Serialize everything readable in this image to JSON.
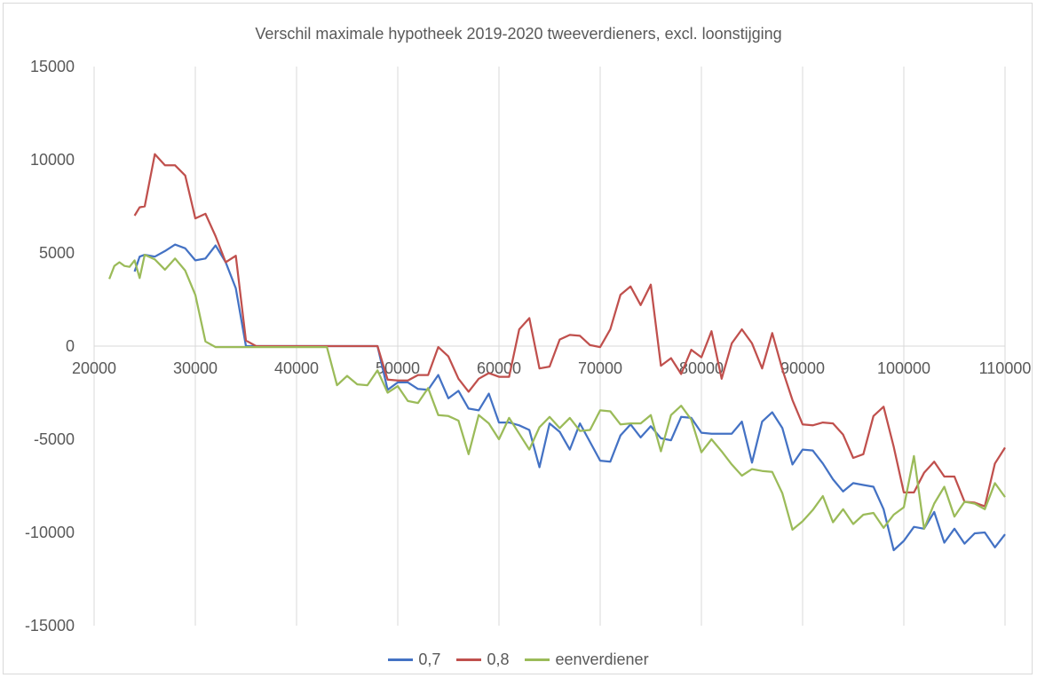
{
  "chart_data": {
    "type": "line",
    "title": "Verschil maximale hypotheek 2019-2020 tweeverdieners, excl. loonstijging",
    "xlabel": "",
    "ylabel": "",
    "xlim": [
      20000,
      110000
    ],
    "ylim": [
      -15000,
      15000
    ],
    "xticks": [
      "20000",
      "30000",
      "40000",
      "50000",
      "60000",
      "70000",
      "80000",
      "90000",
      "100000",
      "110000"
    ],
    "yticks": [
      "15000",
      "10000",
      "5000",
      "0",
      "-5000",
      "-10000",
      "-15000"
    ],
    "grid": "vertical",
    "legend_position": "bottom",
    "series": [
      {
        "name": "0,7",
        "color": "#4472c4",
        "points": [
          [
            24000,
            4000
          ],
          [
            24500,
            4800
          ],
          [
            25000,
            4900
          ],
          [
            26000,
            4800
          ],
          [
            27000,
            5100
          ],
          [
            28000,
            5450
          ],
          [
            29000,
            5250
          ],
          [
            30000,
            4600
          ],
          [
            31000,
            4700
          ],
          [
            32000,
            5400
          ],
          [
            33000,
            4500
          ],
          [
            34000,
            3100
          ],
          [
            35000,
            0
          ],
          [
            36000,
            0
          ],
          [
            37000,
            0
          ],
          [
            38000,
            0
          ],
          [
            39000,
            0
          ],
          [
            40000,
            0
          ],
          [
            41000,
            0
          ],
          [
            42000,
            0
          ],
          [
            43000,
            0
          ],
          [
            44000,
            0
          ],
          [
            45000,
            0
          ],
          [
            46000,
            0
          ],
          [
            47000,
            0
          ],
          [
            48000,
            0
          ],
          [
            49000,
            -2350
          ],
          [
            50000,
            -1950
          ],
          [
            51000,
            -1950
          ],
          [
            52000,
            -2300
          ],
          [
            53000,
            -2350
          ],
          [
            54000,
            -1550
          ],
          [
            55000,
            -2800
          ],
          [
            56000,
            -2400
          ],
          [
            57000,
            -3350
          ],
          [
            58000,
            -3450
          ],
          [
            59000,
            -2550
          ],
          [
            60000,
            -4100
          ],
          [
            61000,
            -4100
          ],
          [
            62000,
            -4250
          ],
          [
            63000,
            -4500
          ],
          [
            64000,
            -6500
          ],
          [
            65000,
            -4150
          ],
          [
            66000,
            -4600
          ],
          [
            67000,
            -5550
          ],
          [
            68000,
            -4150
          ],
          [
            69000,
            -5150
          ],
          [
            70000,
            -6150
          ],
          [
            71000,
            -6200
          ],
          [
            72000,
            -4800
          ],
          [
            73000,
            -4200
          ],
          [
            74000,
            -4900
          ],
          [
            75000,
            -4300
          ],
          [
            76000,
            -4950
          ],
          [
            77000,
            -5050
          ],
          [
            78000,
            -3800
          ],
          [
            79000,
            -3850
          ],
          [
            80000,
            -4650
          ],
          [
            81000,
            -4700
          ],
          [
            82000,
            -4700
          ],
          [
            83000,
            -4700
          ],
          [
            84000,
            -4050
          ],
          [
            85000,
            -6250
          ],
          [
            86000,
            -4050
          ],
          [
            87000,
            -3550
          ],
          [
            88000,
            -4400
          ],
          [
            89000,
            -6350
          ],
          [
            90000,
            -5550
          ],
          [
            91000,
            -5600
          ],
          [
            92000,
            -6300
          ],
          [
            93000,
            -7150
          ],
          [
            94000,
            -7800
          ],
          [
            95000,
            -7350
          ],
          [
            96000,
            -7450
          ],
          [
            97000,
            -7550
          ],
          [
            98000,
            -8750
          ],
          [
            99000,
            -10950
          ],
          [
            100000,
            -10450
          ],
          [
            101000,
            -9700
          ],
          [
            102000,
            -9800
          ],
          [
            103000,
            -8900
          ],
          [
            104000,
            -10550
          ],
          [
            105000,
            -9800
          ],
          [
            106000,
            -10600
          ],
          [
            107000,
            -10050
          ],
          [
            108000,
            -10000
          ],
          [
            109000,
            -10800
          ],
          [
            110000,
            -10100
          ]
        ]
      },
      {
        "name": "0,8",
        "color": "#c0504d",
        "points": [
          [
            24000,
            7000
          ],
          [
            24500,
            7450
          ],
          [
            25000,
            7500
          ],
          [
            26000,
            10300
          ],
          [
            27000,
            9700
          ],
          [
            28000,
            9700
          ],
          [
            29000,
            9150
          ],
          [
            30000,
            6850
          ],
          [
            31000,
            7100
          ],
          [
            32000,
            5900
          ],
          [
            33000,
            4500
          ],
          [
            34000,
            4850
          ],
          [
            35000,
            300
          ],
          [
            36000,
            0
          ],
          [
            37000,
            0
          ],
          [
            38000,
            0
          ],
          [
            39000,
            0
          ],
          [
            40000,
            0
          ],
          [
            41000,
            0
          ],
          [
            42000,
            0
          ],
          [
            43000,
            0
          ],
          [
            44000,
            0
          ],
          [
            45000,
            0
          ],
          [
            46000,
            0
          ],
          [
            47000,
            0
          ],
          [
            48000,
            0
          ],
          [
            49000,
            -1800
          ],
          [
            50000,
            -1850
          ],
          [
            51000,
            -1850
          ],
          [
            52000,
            -1550
          ],
          [
            53000,
            -1550
          ],
          [
            54000,
            -50
          ],
          [
            55000,
            -550
          ],
          [
            56000,
            -1750
          ],
          [
            57000,
            -2450
          ],
          [
            58000,
            -1750
          ],
          [
            59000,
            -1450
          ],
          [
            60000,
            -1650
          ],
          [
            61000,
            -1650
          ],
          [
            62000,
            900
          ],
          [
            63000,
            1500
          ],
          [
            64000,
            -1200
          ],
          [
            65000,
            -1100
          ],
          [
            66000,
            350
          ],
          [
            67000,
            600
          ],
          [
            68000,
            550
          ],
          [
            69000,
            50
          ],
          [
            70000,
            -50
          ],
          [
            71000,
            900
          ],
          [
            72000,
            2750
          ],
          [
            73000,
            3200
          ],
          [
            74000,
            2200
          ],
          [
            75000,
            3300
          ],
          [
            76000,
            -1050
          ],
          [
            77000,
            -650
          ],
          [
            78000,
            -1500
          ],
          [
            79000,
            -200
          ],
          [
            80000,
            -600
          ],
          [
            81000,
            800
          ],
          [
            82000,
            -1750
          ],
          [
            83000,
            150
          ],
          [
            84000,
            900
          ],
          [
            85000,
            150
          ],
          [
            86000,
            -1200
          ],
          [
            87000,
            700
          ],
          [
            88000,
            -1250
          ],
          [
            89000,
            -2900
          ],
          [
            90000,
            -4200
          ],
          [
            91000,
            -4250
          ],
          [
            92000,
            -4100
          ],
          [
            93000,
            -4150
          ],
          [
            94000,
            -4750
          ],
          [
            95000,
            -6000
          ],
          [
            96000,
            -5800
          ],
          [
            97000,
            -3750
          ],
          [
            98000,
            -3250
          ],
          [
            99000,
            -5400
          ],
          [
            100000,
            -7850
          ],
          [
            101000,
            -7850
          ],
          [
            102000,
            -6800
          ],
          [
            103000,
            -6200
          ],
          [
            104000,
            -7000
          ],
          [
            105000,
            -7000
          ],
          [
            106000,
            -8350
          ],
          [
            107000,
            -8400
          ],
          [
            108000,
            -8600
          ],
          [
            109000,
            -6300
          ],
          [
            110000,
            -5450
          ]
        ]
      },
      {
        "name": "eenverdiener",
        "color": "#9bbb59",
        "points": [
          [
            21500,
            3600
          ],
          [
            22000,
            4300
          ],
          [
            22500,
            4500
          ],
          [
            23000,
            4300
          ],
          [
            23500,
            4250
          ],
          [
            24000,
            4600
          ],
          [
            24500,
            3650
          ],
          [
            25000,
            4900
          ],
          [
            26000,
            4650
          ],
          [
            27000,
            4100
          ],
          [
            28000,
            4700
          ],
          [
            29000,
            4050
          ],
          [
            30000,
            2750
          ],
          [
            31000,
            250
          ],
          [
            32000,
            -50
          ],
          [
            33000,
            -50
          ],
          [
            34000,
            -50
          ],
          [
            35000,
            -50
          ],
          [
            36000,
            -50
          ],
          [
            37000,
            -50
          ],
          [
            38000,
            -50
          ],
          [
            39000,
            -50
          ],
          [
            40000,
            -50
          ],
          [
            41000,
            -50
          ],
          [
            42000,
            -50
          ],
          [
            43000,
            -50
          ],
          [
            44000,
            -2100
          ],
          [
            45000,
            -1600
          ],
          [
            46000,
            -2050
          ],
          [
            47000,
            -2100
          ],
          [
            48000,
            -1300
          ],
          [
            49000,
            -2500
          ],
          [
            50000,
            -2150
          ],
          [
            51000,
            -2950
          ],
          [
            52000,
            -3050
          ],
          [
            53000,
            -2250
          ],
          [
            54000,
            -3700
          ],
          [
            55000,
            -3750
          ],
          [
            56000,
            -4000
          ],
          [
            57000,
            -5800
          ],
          [
            58000,
            -3700
          ],
          [
            59000,
            -4150
          ],
          [
            60000,
            -5000
          ],
          [
            61000,
            -3850
          ],
          [
            62000,
            -4700
          ],
          [
            63000,
            -5550
          ],
          [
            64000,
            -4350
          ],
          [
            65000,
            -3800
          ],
          [
            66000,
            -4400
          ],
          [
            67000,
            -3850
          ],
          [
            68000,
            -4550
          ],
          [
            69000,
            -4500
          ],
          [
            70000,
            -3450
          ],
          [
            71000,
            -3500
          ],
          [
            72000,
            -4200
          ],
          [
            73000,
            -4150
          ],
          [
            74000,
            -4150
          ],
          [
            75000,
            -3700
          ],
          [
            76000,
            -5650
          ],
          [
            77000,
            -3700
          ],
          [
            78000,
            -3200
          ],
          [
            79000,
            -3950
          ],
          [
            80000,
            -5700
          ],
          [
            81000,
            -5000
          ],
          [
            82000,
            -5650
          ],
          [
            83000,
            -6350
          ],
          [
            84000,
            -6950
          ],
          [
            85000,
            -6600
          ],
          [
            86000,
            -6700
          ],
          [
            87000,
            -6750
          ],
          [
            88000,
            -7900
          ],
          [
            89000,
            -9850
          ],
          [
            90000,
            -9400
          ],
          [
            91000,
            -8800
          ],
          [
            92000,
            -8050
          ],
          [
            93000,
            -9450
          ],
          [
            94000,
            -8750
          ],
          [
            95000,
            -9550
          ],
          [
            96000,
            -9050
          ],
          [
            97000,
            -8950
          ],
          [
            98000,
            -9750
          ],
          [
            99000,
            -9050
          ],
          [
            100000,
            -8650
          ],
          [
            101000,
            -5900
          ],
          [
            102000,
            -9800
          ],
          [
            103000,
            -8450
          ],
          [
            104000,
            -7550
          ],
          [
            105000,
            -9150
          ],
          [
            106000,
            -8350
          ],
          [
            107000,
            -8450
          ],
          [
            108000,
            -8750
          ],
          [
            109000,
            -7350
          ],
          [
            110000,
            -8100
          ]
        ]
      }
    ]
  }
}
